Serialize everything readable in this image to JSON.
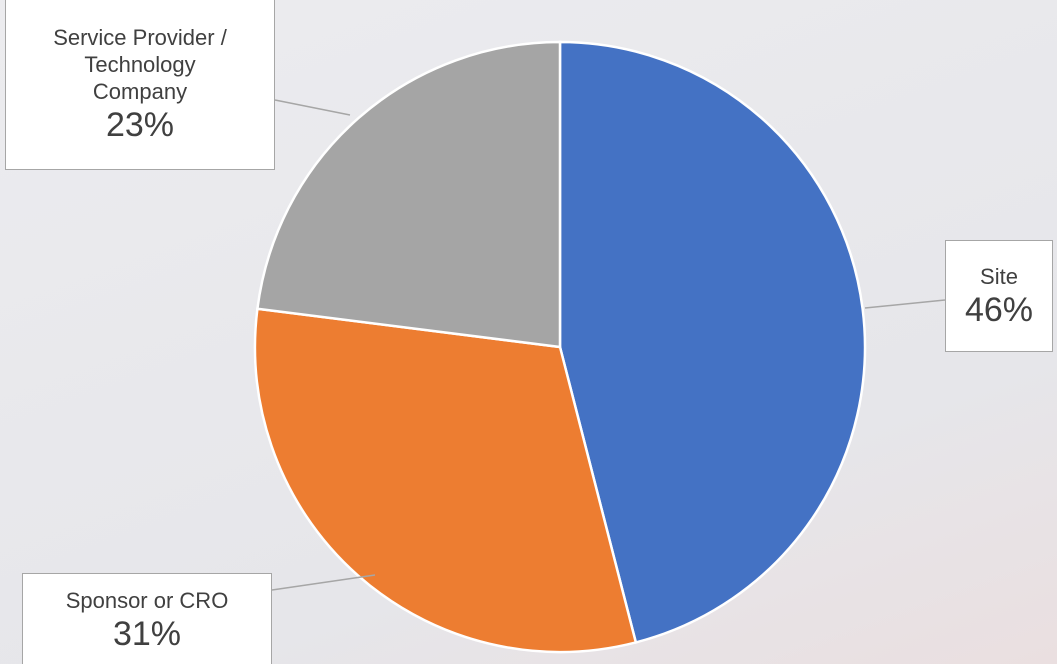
{
  "chart_data": {
    "type": "pie",
    "categories": [
      "Site",
      "Sponsor or CRO",
      "Service Provider / Technology Company"
    ],
    "values": [
      46,
      31,
      23
    ],
    "value_labels": [
      "46%",
      "31%",
      "23%"
    ],
    "colors": [
      "#4472c4",
      "#ed7d31",
      "#a5a5a5"
    ]
  }
}
